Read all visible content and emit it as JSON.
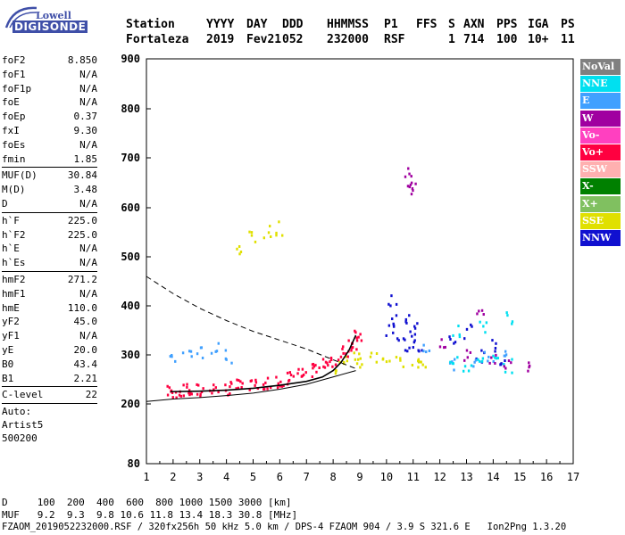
{
  "logo": {
    "top": "Lowell",
    "bottom": "DIGISONDE"
  },
  "header": {
    "labels": [
      "Station",
      "YYYY",
      "DAY",
      "DDD",
      "HHMMSS",
      "P1",
      "FFS",
      "S",
      "AXN",
      "PPS",
      "IGA",
      "PS"
    ],
    "values": [
      "Fortaleza",
      "2019",
      "Fev21",
      "052",
      "232000",
      "RSF",
      "",
      "1",
      "714",
      "100",
      "10+",
      "11"
    ]
  },
  "params": [
    {
      "name": "foF2",
      "value": "8.850"
    },
    {
      "name": "foF1",
      "value": "N/A"
    },
    {
      "name": "foF1p",
      "value": "N/A"
    },
    {
      "name": "foE",
      "value": "N/A"
    },
    {
      "name": "foEp",
      "value": "0.37"
    },
    {
      "name": "fxI",
      "value": "9.30"
    },
    {
      "name": "foEs",
      "value": "N/A"
    },
    {
      "name": "fmin",
      "value": "1.85"
    },
    {
      "sep": true
    },
    {
      "name": "MUF(D)",
      "value": "30.84"
    },
    {
      "name": "M(D)",
      "value": "3.48"
    },
    {
      "name": "D",
      "value": "N/A"
    },
    {
      "sep": true
    },
    {
      "name": "h`F",
      "value": "225.0"
    },
    {
      "name": "h`F2",
      "value": "225.0"
    },
    {
      "name": "h`E",
      "value": "N/A"
    },
    {
      "name": "h`Es",
      "value": "N/A"
    },
    {
      "sep": true
    },
    {
      "name": "hmF2",
      "value": "271.2"
    },
    {
      "name": "hmF1",
      "value": "N/A"
    },
    {
      "name": "hmE",
      "value": "110.0"
    },
    {
      "name": "yF2",
      "value": "45.0"
    },
    {
      "name": "yF1",
      "value": "N/A"
    },
    {
      "name": "yE",
      "value": "20.0"
    },
    {
      "name": "B0",
      "value": "43.4"
    },
    {
      "name": "B1",
      "value": "2.21"
    },
    {
      "sep": true
    },
    {
      "name": "C-level",
      "value": "22"
    },
    {
      "sep": true
    }
  ],
  "auto": {
    "line1": "Auto:",
    "line2": "Artist5",
    "line3": "500200"
  },
  "legend": [
    {
      "label": "NoVal",
      "bg": "#808080",
      "fg": "#ffffff"
    },
    {
      "label": "NNE",
      "bg": "#00e0f0",
      "fg": "#ffffff"
    },
    {
      "label": "E",
      "bg": "#40a0ff",
      "fg": "#ffffff"
    },
    {
      "label": "W",
      "bg": "#a000a0",
      "fg": "#ffffff"
    },
    {
      "label": "Vo-",
      "bg": "#ff40c0",
      "fg": "#ffffff"
    },
    {
      "label": "Vo+",
      "bg": "#ff0040",
      "fg": "#ffffff"
    },
    {
      "label": "SSW",
      "bg": "#ffb0b0",
      "fg": "#ffffff"
    },
    {
      "label": "X-",
      "bg": "#008000",
      "fg": "#ffffff"
    },
    {
      "label": "X+",
      "bg": "#80c060",
      "fg": "#ffffff"
    },
    {
      "label": "SSE",
      "bg": "#e0e000",
      "fg": "#ffffff"
    },
    {
      "label": "NNW",
      "bg": "#1010d0",
      "fg": "#ffffff"
    }
  ],
  "bottom": {
    "line1": "D     100  200  400  600  800 1000 1500 3000 [km]",
    "line2": "MUF   9.2  9.3  9.8 10.6 11.8 13.4 18.3 30.8 [MHz]",
    "line3": "FZAOM_2019052232000.RSF / 320fx256h 50 kHz 5.0 km / DPS-4 FZAOM 904 / 3.9 S 321.6 E   Ion2Png 1.3.20"
  },
  "chart_data": {
    "type": "scatter",
    "x_ticks": [
      "1",
      "2",
      "3",
      "4",
      "5",
      "6",
      "7",
      "8",
      "9",
      "10",
      "11",
      "12",
      "13",
      "14",
      "15",
      "16",
      "17"
    ],
    "y_ticks": [
      "80",
      "200",
      "300",
      "400",
      "500",
      "600",
      "700",
      "800",
      "900"
    ],
    "xlim": [
      1,
      17
    ],
    "y_scale": "piecewise",
    "grid": false,
    "legend_position": "right",
    "series": [
      {
        "name": "Vo+",
        "color": "#ff0040",
        "x": [
          1.9,
          2.2,
          2.6,
          3.0,
          3.5,
          4.0,
          4.5,
          5.0,
          5.5,
          6.0,
          6.4,
          6.8,
          7.2,
          7.6,
          8.0,
          8.4,
          8.7,
          8.9
        ],
        "y": [
          228,
          228,
          229,
          230,
          232,
          234,
          238,
          241,
          246,
          250,
          255,
          262,
          270,
          280,
          292,
          308,
          325,
          345
        ]
      },
      {
        "name": "NNW",
        "color": "#1010d0",
        "x": [
          10.1,
          10.3,
          10.5,
          10.8,
          11.0,
          11.2,
          10.2,
          10.7,
          11.0,
          12.5,
          13.0,
          13.5,
          14.0,
          14.4
        ],
        "y": [
          350,
          370,
          330,
          315,
          360,
          300,
          410,
          380,
          340,
          340,
          350,
          300,
          320,
          290
        ]
      },
      {
        "name": "SSE",
        "color": "#e0e000",
        "x": [
          8.2,
          8.5,
          8.8,
          9.0,
          9.5,
          10.0,
          10.5,
          11.0,
          11.3,
          4.5,
          5.0,
          5.5,
          6.0
        ],
        "y": [
          275,
          290,
          300,
          285,
          300,
          295,
          290,
          285,
          280,
          520,
          540,
          555,
          560
        ]
      },
      {
        "name": "E",
        "color": "#40a0ff",
        "x": [
          2.0,
          2.5,
          3.0,
          3.5,
          4.0,
          12.4,
          13.2,
          13.8,
          14.5,
          11.5
        ],
        "y": [
          300,
          305,
          310,
          315,
          300,
          280,
          285,
          300,
          310,
          320
        ]
      },
      {
        "name": "NNE",
        "color": "#00e0f0",
        "x": [
          12.5,
          13.0,
          13.5,
          14.0,
          14.5,
          12.6,
          13.6,
          14.6
        ],
        "y": [
          285,
          280,
          285,
          290,
          280,
          350,
          360,
          380
        ]
      },
      {
        "name": "W",
        "color": "#a000a0",
        "x": [
          10.8,
          10.9,
          11.0,
          12.0,
          13.0,
          13.5,
          14.0,
          14.5,
          15.2
        ],
        "y": [
          670,
          655,
          640,
          330,
          300,
          380,
          290,
          285,
          280
        ]
      }
    ],
    "curves": [
      {
        "style": "dashed",
        "x": [
          1,
          2,
          3,
          4,
          5,
          6,
          7,
          8,
          8.85
        ],
        "y": [
          460,
          425,
          395,
          370,
          348,
          330,
          312,
          290,
          272
        ]
      },
      {
        "style": "solid",
        "x": [
          1,
          2,
          3,
          4,
          5,
          6,
          7,
          8,
          8.85
        ],
        "y": [
          205,
          210,
          213,
          217,
          222,
          230,
          240,
          255,
          268
        ]
      },
      {
        "style": "solid-profile",
        "x": [
          1.9,
          3,
          4,
          5,
          6,
          7,
          7.6,
          8.0,
          8.3,
          8.6,
          8.85
        ],
        "y": [
          225,
          226,
          228,
          232,
          238,
          246,
          255,
          268,
          285,
          310,
          340
        ]
      }
    ]
  }
}
